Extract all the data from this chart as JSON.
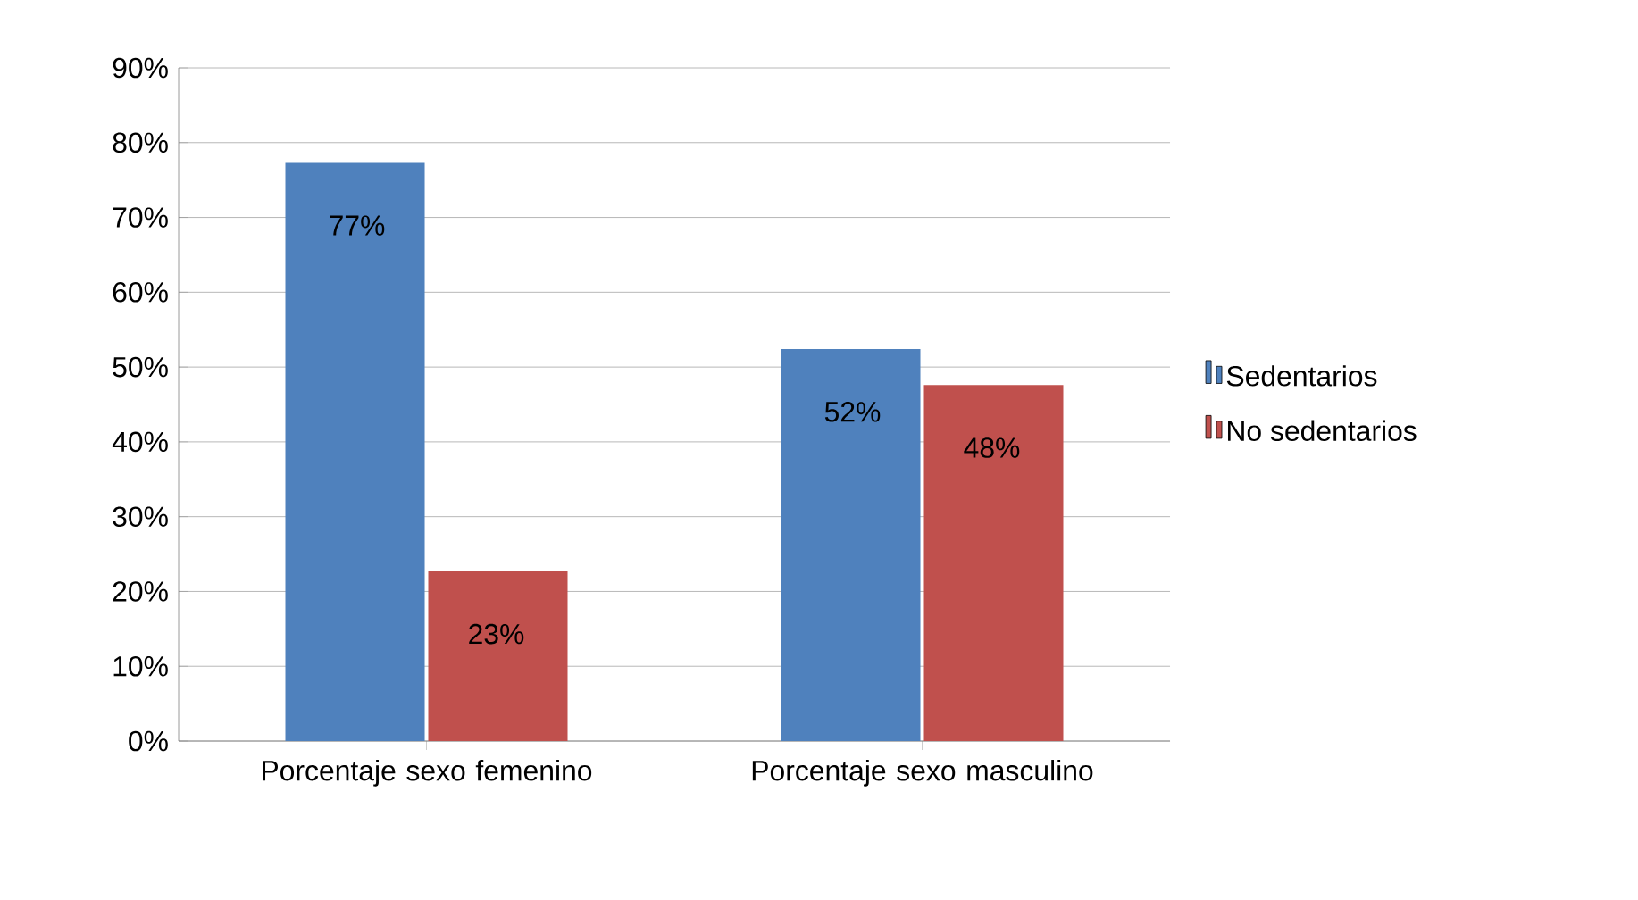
{
  "chart_data": {
    "type": "bar",
    "categories": [
      "Porcentaje sexo femenino",
      "Porcentaje sexo masculino"
    ],
    "series": [
      {
        "name": "Sedentarios",
        "color": "#4f81bd",
        "values": [
          77.3,
          52.4
        ],
        "value_labels": [
          "77%",
          "52%"
        ]
      },
      {
        "name": "No sedentarios",
        "color": "#c0504d",
        "values": [
          22.7,
          47.6
        ],
        "value_labels": [
          "23%",
          "48%"
        ]
      }
    ],
    "ylim": [
      0,
      90
    ],
    "yticks": [
      {
        "value": 0,
        "label": "0%"
      },
      {
        "value": 10,
        "label": "10%"
      },
      {
        "value": 20,
        "label": "20%"
      },
      {
        "value": 30,
        "label": "30%"
      },
      {
        "value": 40,
        "label": "40%"
      },
      {
        "value": 50,
        "label": "50%"
      },
      {
        "value": 60,
        "label": "60%"
      },
      {
        "value": 70,
        "label": "70%"
      },
      {
        "value": 80,
        "label": "80%"
      },
      {
        "value": 90,
        "label": "90%"
      }
    ],
    "grid": "y",
    "legend": "right"
  }
}
